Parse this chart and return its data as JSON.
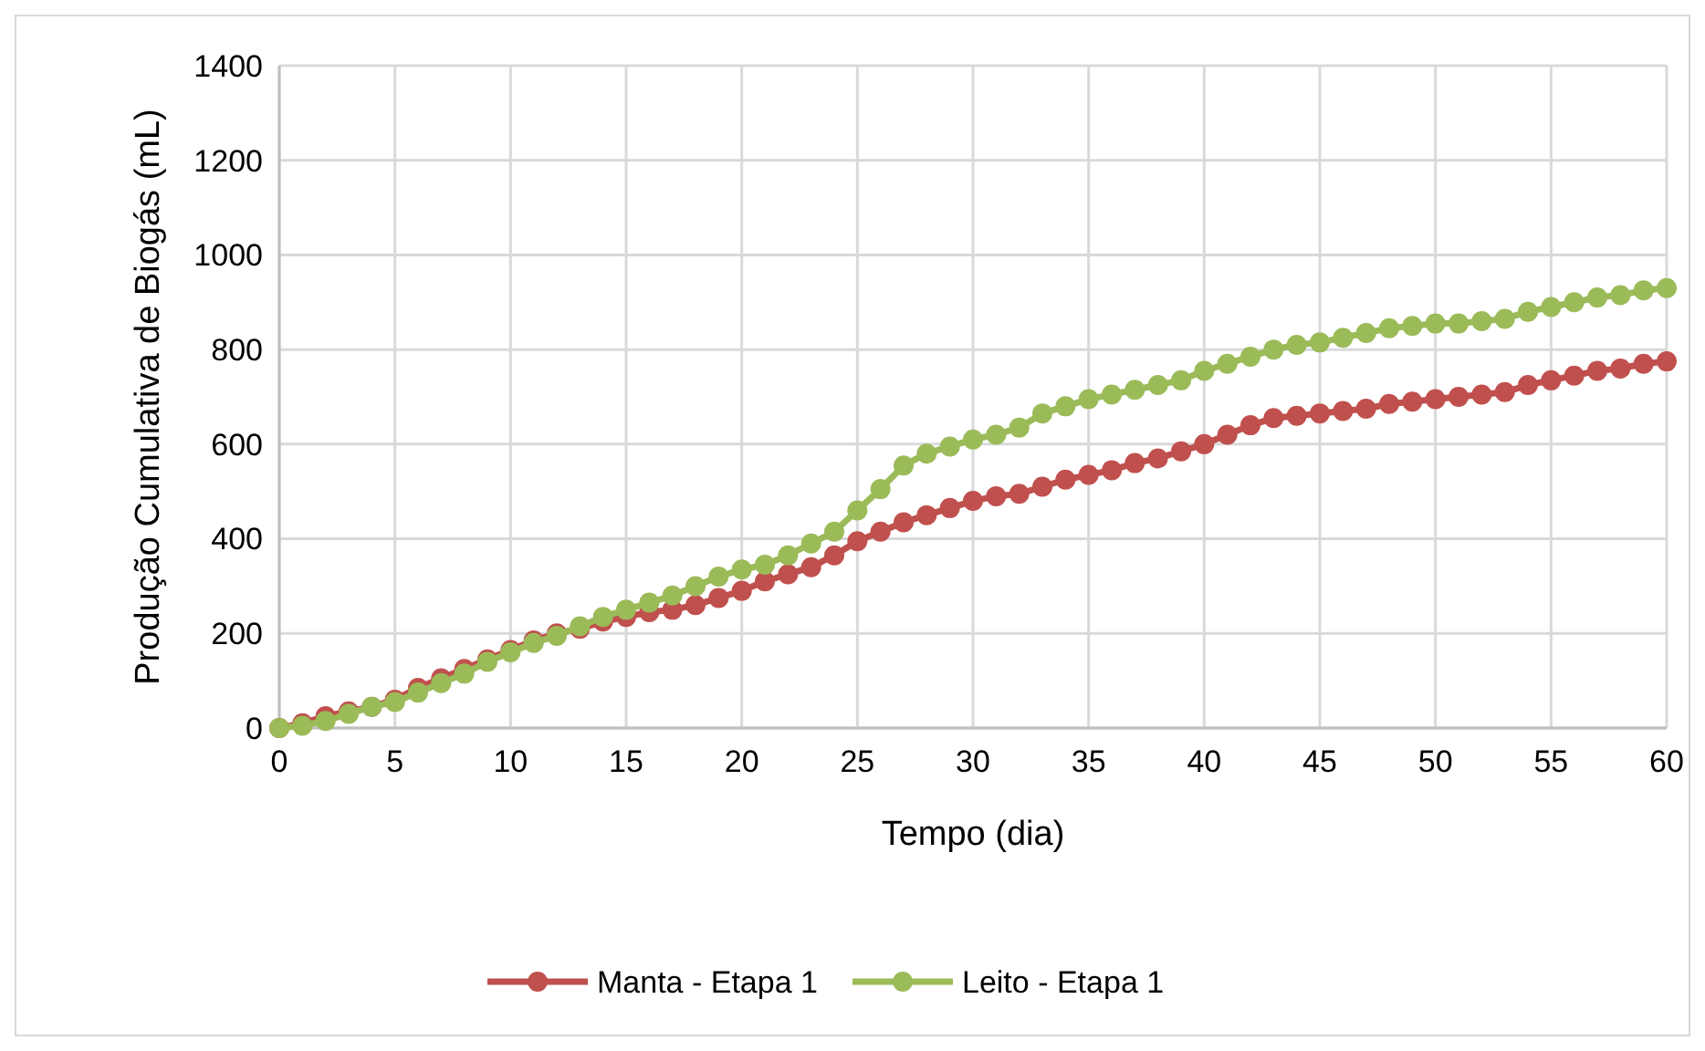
{
  "chart_data": {
    "type": "line",
    "xlabel": "Tempo (dia)",
    "ylabel": "Produção Cumulativa de Biogás (mL)",
    "x": [
      0,
      1,
      2,
      3,
      4,
      5,
      6,
      7,
      8,
      9,
      10,
      11,
      12,
      13,
      14,
      15,
      16,
      17,
      18,
      19,
      20,
      21,
      22,
      23,
      24,
      25,
      26,
      27,
      28,
      29,
      30,
      31,
      32,
      33,
      34,
      35,
      36,
      37,
      38,
      39,
      40,
      41,
      42,
      43,
      44,
      45,
      46,
      47,
      48,
      49,
      50,
      51,
      52,
      53,
      54,
      55,
      56,
      57,
      58,
      59,
      60
    ],
    "series": [
      {
        "name": "Manta - Etapa 1",
        "color": "#c0504d",
        "values": [
          0,
          10,
          25,
          35,
          45,
          60,
          85,
          105,
          125,
          145,
          165,
          185,
          200,
          210,
          225,
          235,
          245,
          250,
          260,
          275,
          290,
          310,
          325,
          340,
          365,
          395,
          415,
          435,
          450,
          465,
          480,
          490,
          495,
          510,
          525,
          535,
          545,
          560,
          570,
          585,
          600,
          620,
          640,
          655,
          660,
          665,
          670,
          675,
          685,
          690,
          695,
          700,
          705,
          710,
          725,
          735,
          745,
          755,
          760,
          770,
          775
        ]
      },
      {
        "name": "Leito - Etapa 1",
        "color": "#9bbb59",
        "values": [
          0,
          5,
          15,
          30,
          45,
          55,
          75,
          95,
          115,
          140,
          160,
          180,
          195,
          215,
          235,
          250,
          265,
          280,
          300,
          320,
          335,
          345,
          365,
          390,
          415,
          460,
          505,
          555,
          580,
          595,
          610,
          620,
          635,
          665,
          680,
          695,
          705,
          715,
          725,
          735,
          755,
          770,
          785,
          800,
          810,
          815,
          825,
          835,
          845,
          850,
          855,
          855,
          860,
          865,
          880,
          890,
          900,
          910,
          915,
          925,
          930
        ]
      }
    ],
    "xlim": [
      0,
      60
    ],
    "xticks": [
      0,
      5,
      10,
      15,
      20,
      25,
      30,
      35,
      40,
      45,
      50,
      55,
      60
    ],
    "ylim": [
      0,
      1400
    ],
    "yticks": [
      0,
      200,
      400,
      600,
      800,
      1000,
      1200,
      1400
    ],
    "grid": true,
    "legend": "bottom",
    "marker": "circle",
    "line_style": "solid"
  }
}
